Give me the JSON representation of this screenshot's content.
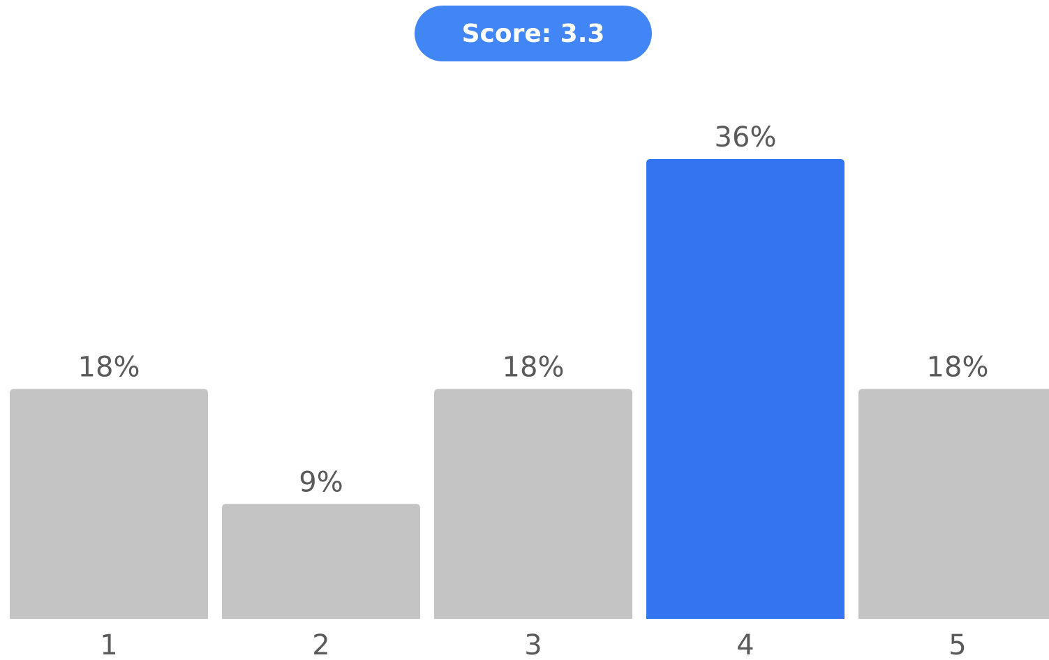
{
  "score": {
    "label": "Score: 3.3"
  },
  "colors": {
    "accent": "#3574f0",
    "bar_default": "#c4c4c4",
    "pill": "#4285f4",
    "text": "#5a5a5a"
  },
  "chart_data": {
    "type": "bar",
    "categories": [
      "1",
      "2",
      "3",
      "4",
      "5"
    ],
    "values": [
      18,
      9,
      18,
      36,
      18
    ],
    "value_labels": [
      "18%",
      "9%",
      "18%",
      "36%",
      "18%"
    ],
    "highlight_category": "4",
    "title": "",
    "xlabel": "",
    "ylabel": "",
    "ylim": [
      0,
      36
    ],
    "grid": false,
    "legend": "none"
  }
}
